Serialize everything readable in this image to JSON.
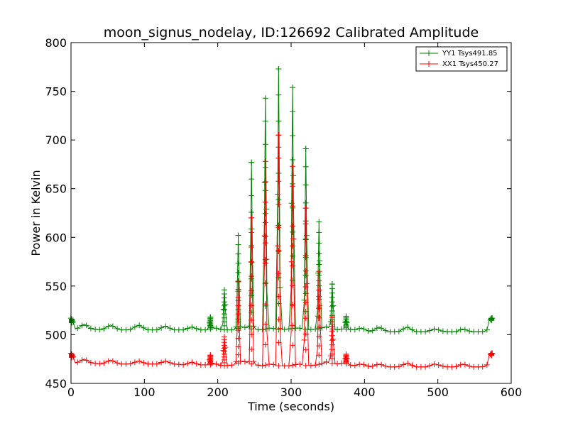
{
  "chart_data": {
    "type": "line",
    "title": "moon_signus_nodelay, ID:126692 Calibrated Amplitude",
    "xlabel": "Time (seconds)",
    "ylabel": "Power in Kelvin",
    "xlim": [
      0,
      600
    ],
    "ylim": [
      450,
      800
    ],
    "xticks": [
      0,
      100,
      200,
      300,
      400,
      500,
      600
    ],
    "yticks": [
      450,
      500,
      550,
      600,
      650,
      700,
      750,
      800
    ],
    "grid": false,
    "legend_position": "top-right",
    "marker": "plus",
    "series": [
      {
        "name": "YY1 Tsys491.85",
        "color": "#008000",
        "baseline": [
          [
            0,
            516
          ],
          [
            3,
            505
          ],
          [
            10,
            507
          ],
          [
            18,
            511
          ],
          [
            28,
            506
          ],
          [
            42,
            505
          ],
          [
            54,
            510
          ],
          [
            66,
            505
          ],
          [
            80,
            505
          ],
          [
            92,
            510
          ],
          [
            104,
            505
          ],
          [
            118,
            505
          ],
          [
            128,
            509
          ],
          [
            140,
            505
          ],
          [
            154,
            505
          ],
          [
            164,
            508
          ],
          [
            176,
            505
          ],
          [
            186,
            505
          ],
          [
            196,
            507
          ],
          [
            206,
            505
          ],
          [
            222,
            505
          ],
          [
            234,
            508
          ],
          [
            246,
            506
          ],
          [
            260,
            505
          ],
          [
            272,
            507
          ],
          [
            284,
            505
          ],
          [
            298,
            506
          ],
          [
            310,
            507
          ],
          [
            322,
            505
          ],
          [
            336,
            506
          ],
          [
            348,
            508
          ],
          [
            360,
            505
          ],
          [
            372,
            506
          ],
          [
            386,
            505
          ],
          [
            396,
            507
          ],
          [
            408,
            503
          ],
          [
            420,
            508
          ],
          [
            432,
            503
          ],
          [
            446,
            503
          ],
          [
            458,
            508
          ],
          [
            470,
            503
          ],
          [
            484,
            503
          ],
          [
            496,
            506
          ],
          [
            510,
            503
          ],
          [
            524,
            503
          ],
          [
            534,
            506
          ],
          [
            546,
            503
          ],
          [
            560,
            503
          ],
          [
            566,
            504
          ],
          [
            570,
            508
          ],
          [
            574,
            517
          ]
        ],
        "spikes": [
          [
            1,
            516
          ],
          [
            190,
            518
          ],
          [
            209,
            546
          ],
          [
            228,
            602
          ],
          [
            246,
            677
          ],
          [
            265,
            743
          ],
          [
            283,
            773
          ],
          [
            302,
            754
          ],
          [
            320,
            691
          ],
          [
            338,
            616
          ],
          [
            356,
            552
          ],
          [
            375,
            519
          ],
          [
            573,
            517
          ]
        ]
      },
      {
        "name": "XX1 Tsys450.27",
        "color": "#ff0000",
        "baseline": [
          [
            0,
            480
          ],
          [
            3,
            470
          ],
          [
            10,
            472
          ],
          [
            18,
            475
          ],
          [
            28,
            471
          ],
          [
            42,
            470
          ],
          [
            54,
            474
          ],
          [
            66,
            470
          ],
          [
            80,
            470
          ],
          [
            92,
            473
          ],
          [
            104,
            470
          ],
          [
            118,
            470
          ],
          [
            128,
            473
          ],
          [
            140,
            470
          ],
          [
            154,
            469
          ],
          [
            164,
            472
          ],
          [
            176,
            469
          ],
          [
            188,
            469
          ],
          [
            198,
            470
          ],
          [
            206,
            468
          ],
          [
            222,
            469
          ],
          [
            234,
            473
          ],
          [
            246,
            470
          ],
          [
            260,
            468
          ],
          [
            272,
            470
          ],
          [
            284,
            468
          ],
          [
            298,
            468
          ],
          [
            310,
            470
          ],
          [
            322,
            468
          ],
          [
            336,
            469
          ],
          [
            348,
            472
          ],
          [
            360,
            470
          ],
          [
            372,
            471
          ],
          [
            384,
            468
          ],
          [
            396,
            470
          ],
          [
            408,
            467
          ],
          [
            420,
            470
          ],
          [
            432,
            467
          ],
          [
            446,
            467
          ],
          [
            458,
            471
          ],
          [
            470,
            467
          ],
          [
            484,
            467
          ],
          [
            496,
            470
          ],
          [
            510,
            467
          ],
          [
            524,
            467
          ],
          [
            534,
            470
          ],
          [
            546,
            467
          ],
          [
            560,
            467
          ],
          [
            566,
            468
          ],
          [
            570,
            472
          ],
          [
            574,
            481
          ]
        ],
        "spikes": [
          [
            1,
            480
          ],
          [
            190,
            479
          ],
          [
            209,
            498
          ],
          [
            228,
            555
          ],
          [
            246,
            620
          ],
          [
            265,
            678
          ],
          [
            283,
            705
          ],
          [
            302,
            673
          ],
          [
            320,
            630
          ],
          [
            338,
            565
          ],
          [
            356,
            518
          ],
          [
            375,
            480
          ],
          [
            573,
            481
          ]
        ]
      }
    ]
  }
}
